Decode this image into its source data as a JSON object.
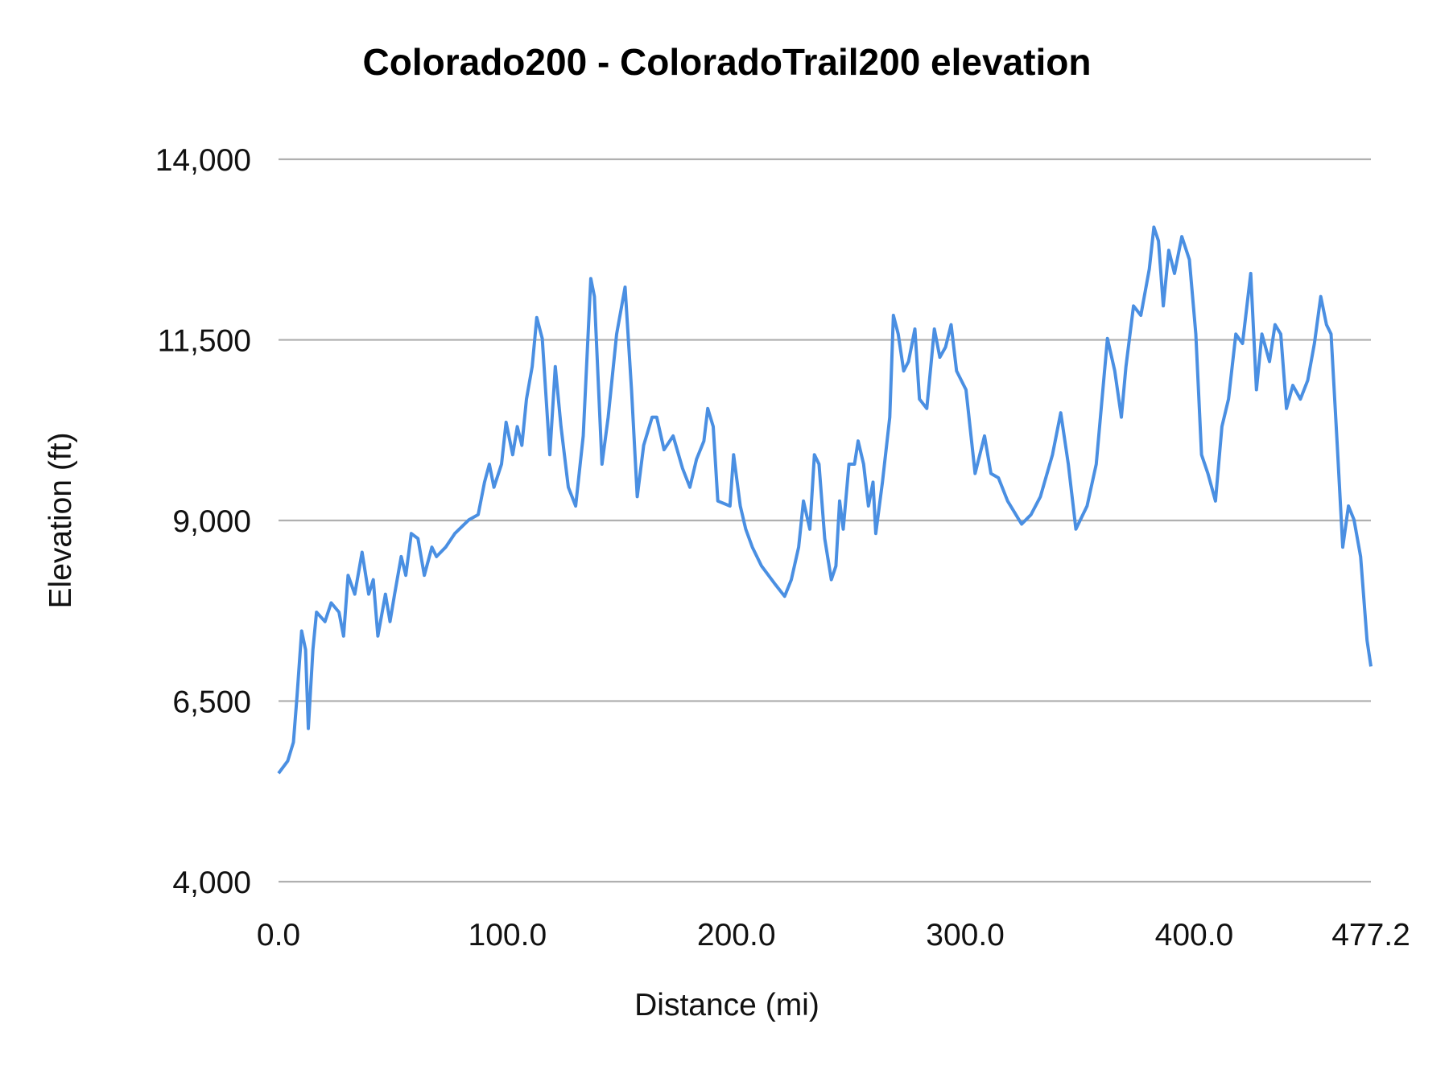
{
  "chart_data": {
    "type": "line",
    "title": "Colorado200 - ColoradoTrail200 elevation",
    "xlabel": "Distance (mi)",
    "ylabel": "Elevation (ft)",
    "xlim": [
      0,
      477.2
    ],
    "ylim": [
      4000,
      14000
    ],
    "x_ticks": [
      0,
      100,
      200,
      300,
      400,
      477.2
    ],
    "x_tick_labels": [
      "0.0",
      "100.0",
      "200.0",
      "300.0",
      "400.0",
      "477.2"
    ],
    "y_ticks": [
      4000,
      6500,
      9000,
      11500,
      14000
    ],
    "y_tick_labels": [
      "4,000",
      "6,500",
      "9,000",
      "11,500",
      "14,000"
    ],
    "grid": "horizontal",
    "legend": "none",
    "colors": {
      "line": "#4a8fe2",
      "grid": "#b0b0b0"
    },
    "series": [
      {
        "x": [
          0,
          4,
          6.5,
          8.1,
          10.1,
          11.8,
          13,
          15,
          16.6,
          20.3,
          23,
          26.4,
          28.4,
          30.4,
          33.3,
          36.5,
          39.4,
          41.4,
          43.4,
          46.7,
          48.7,
          50.7,
          53.6,
          55.6,
          58,
          60.9,
          63.7,
          67,
          69,
          73,
          77,
          83.2,
          87.2,
          90,
          92.1,
          94.1,
          97.4,
          99.4,
          102.3,
          104.3,
          106.3,
          108.3,
          110.8,
          112.8,
          115.2,
          118.5,
          120.9,
          123.4,
          126.6,
          129.8,
          133.1,
          136.4,
          138,
          141.3,
          144,
          147.7,
          151.4,
          154.2,
          156.7,
          159.5,
          163.2,
          165.2,
          168.4,
          172.4,
          176.5,
          179.7,
          182.6,
          185.8,
          187.5,
          189.9,
          191.9,
          197.2,
          198.8,
          201.7,
          204.1,
          207,
          211,
          217.1,
          221.1,
          224,
          227.2,
          229.3,
          232.1,
          234.1,
          236.1,
          238.6,
          241.5,
          243.5,
          245.1,
          246.7,
          249.2,
          251.6,
          253.2,
          255.6,
          257.7,
          259.7,
          260.9,
          263.8,
          267,
          268.6,
          270.7,
          273.1,
          275.2,
          278,
          280,
          283.2,
          286.5,
          288.9,
          291.4,
          293.8,
          296.2,
          300.3,
          304.3,
          308.4,
          311.2,
          314.5,
          318.5,
          324.6,
          328.7,
          332.8,
          338.1,
          341.7,
          345,
          348.3,
          353.2,
          357.2,
          362.1,
          365.3,
          368.2,
          370.2,
          373.5,
          376.7,
          380.4,
          382.4,
          384.4,
          386.5,
          388.9,
          391.4,
          394.6,
          397.9,
          400.7,
          403.2,
          406,
          409.3,
          412.1,
          415,
          418.2,
          421.1,
          424.7,
          427.2,
          429.6,
          432.9,
          435.3,
          437.8,
          440.3,
          443.1,
          446.4,
          449.6,
          452.5,
          455.3,
          457.8,
          459.8,
          462.5,
          464.9,
          467.4,
          469.8,
          472.7,
          475.5,
          477.2
        ],
        "y": [
          5500,
          5670,
          5930,
          6570,
          7470,
          7210,
          6120,
          7210,
          7730,
          7600,
          7860,
          7730,
          7400,
          8240,
          7980,
          8560,
          7980,
          8180,
          7400,
          7980,
          7600,
          7980,
          8500,
          8240,
          8820,
          8750,
          8240,
          8630,
          8500,
          8630,
          8820,
          9010,
          9080,
          9530,
          9780,
          9460,
          9780,
          10360,
          9910,
          10300,
          10040,
          10680,
          11130,
          11810,
          11520,
          9910,
          11130,
          10300,
          9460,
          9200,
          10170,
          12350,
          12100,
          9780,
          10430,
          11580,
          12230,
          10810,
          9330,
          10040,
          10430,
          10430,
          9980,
          10170,
          9720,
          9460,
          9850,
          10100,
          10550,
          10300,
          9270,
          9200,
          9910,
          9200,
          8880,
          8630,
          8370,
          8110,
          7950,
          8180,
          8630,
          9270,
          8880,
          9910,
          9780,
          8750,
          8180,
          8370,
          9270,
          8880,
          9780,
          9780,
          10100,
          9780,
          9200,
          9530,
          8820,
          9530,
          10430,
          11840,
          11580,
          11070,
          11200,
          11650,
          10680,
          10550,
          11650,
          11260,
          11400,
          11710,
          11070,
          10810,
          9650,
          10170,
          9650,
          9590,
          9270,
          8950,
          9080,
          9330,
          9910,
          10490,
          9780,
          8880,
          9200,
          9780,
          11520,
          11070,
          10430,
          11130,
          11970,
          11840,
          12480,
          13060,
          12870,
          11970,
          12740,
          12420,
          12930,
          12610,
          11580,
          9910,
          9650,
          9270,
          10300,
          10680,
          11580,
          11450,
          12420,
          10810,
          11580,
          11200,
          11710,
          11580,
          10550,
          10870,
          10680,
          10940,
          11450,
          12100,
          11710,
          11580,
          10040,
          8630,
          9200,
          9010,
          8500,
          7340,
          6980
        ]
      }
    ]
  }
}
